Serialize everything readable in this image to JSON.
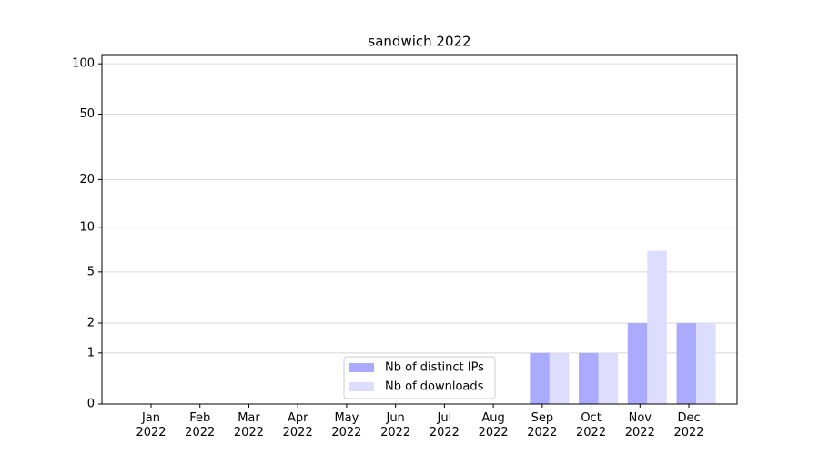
{
  "chart_data": {
    "type": "bar",
    "title": "sandwich 2022",
    "categories": [
      "Jan\n2022",
      "Feb\n2022",
      "Mar\n2022",
      "Apr\n2022",
      "May\n2022",
      "Jun\n2022",
      "Jul\n2022",
      "Aug\n2022",
      "Sep\n2022",
      "Oct\n2022",
      "Nov\n2022",
      "Dec\n2022"
    ],
    "series": [
      {
        "name": "Nb of distinct IPs",
        "color": "#aaaaff",
        "values": [
          0,
          0,
          0,
          0,
          0,
          0,
          0,
          0,
          1,
          1,
          2,
          2
        ]
      },
      {
        "name": "Nb of downloads",
        "color": "#ddddff",
        "values": [
          0,
          0,
          0,
          0,
          0,
          0,
          0,
          0,
          1,
          1,
          7,
          2
        ]
      }
    ],
    "yscale": "log1p",
    "ylim": [
      0,
      113.5
    ],
    "yticks": [
      0,
      1,
      2,
      5,
      10,
      20,
      50,
      100
    ],
    "grid": true,
    "legend": "lower center"
  }
}
